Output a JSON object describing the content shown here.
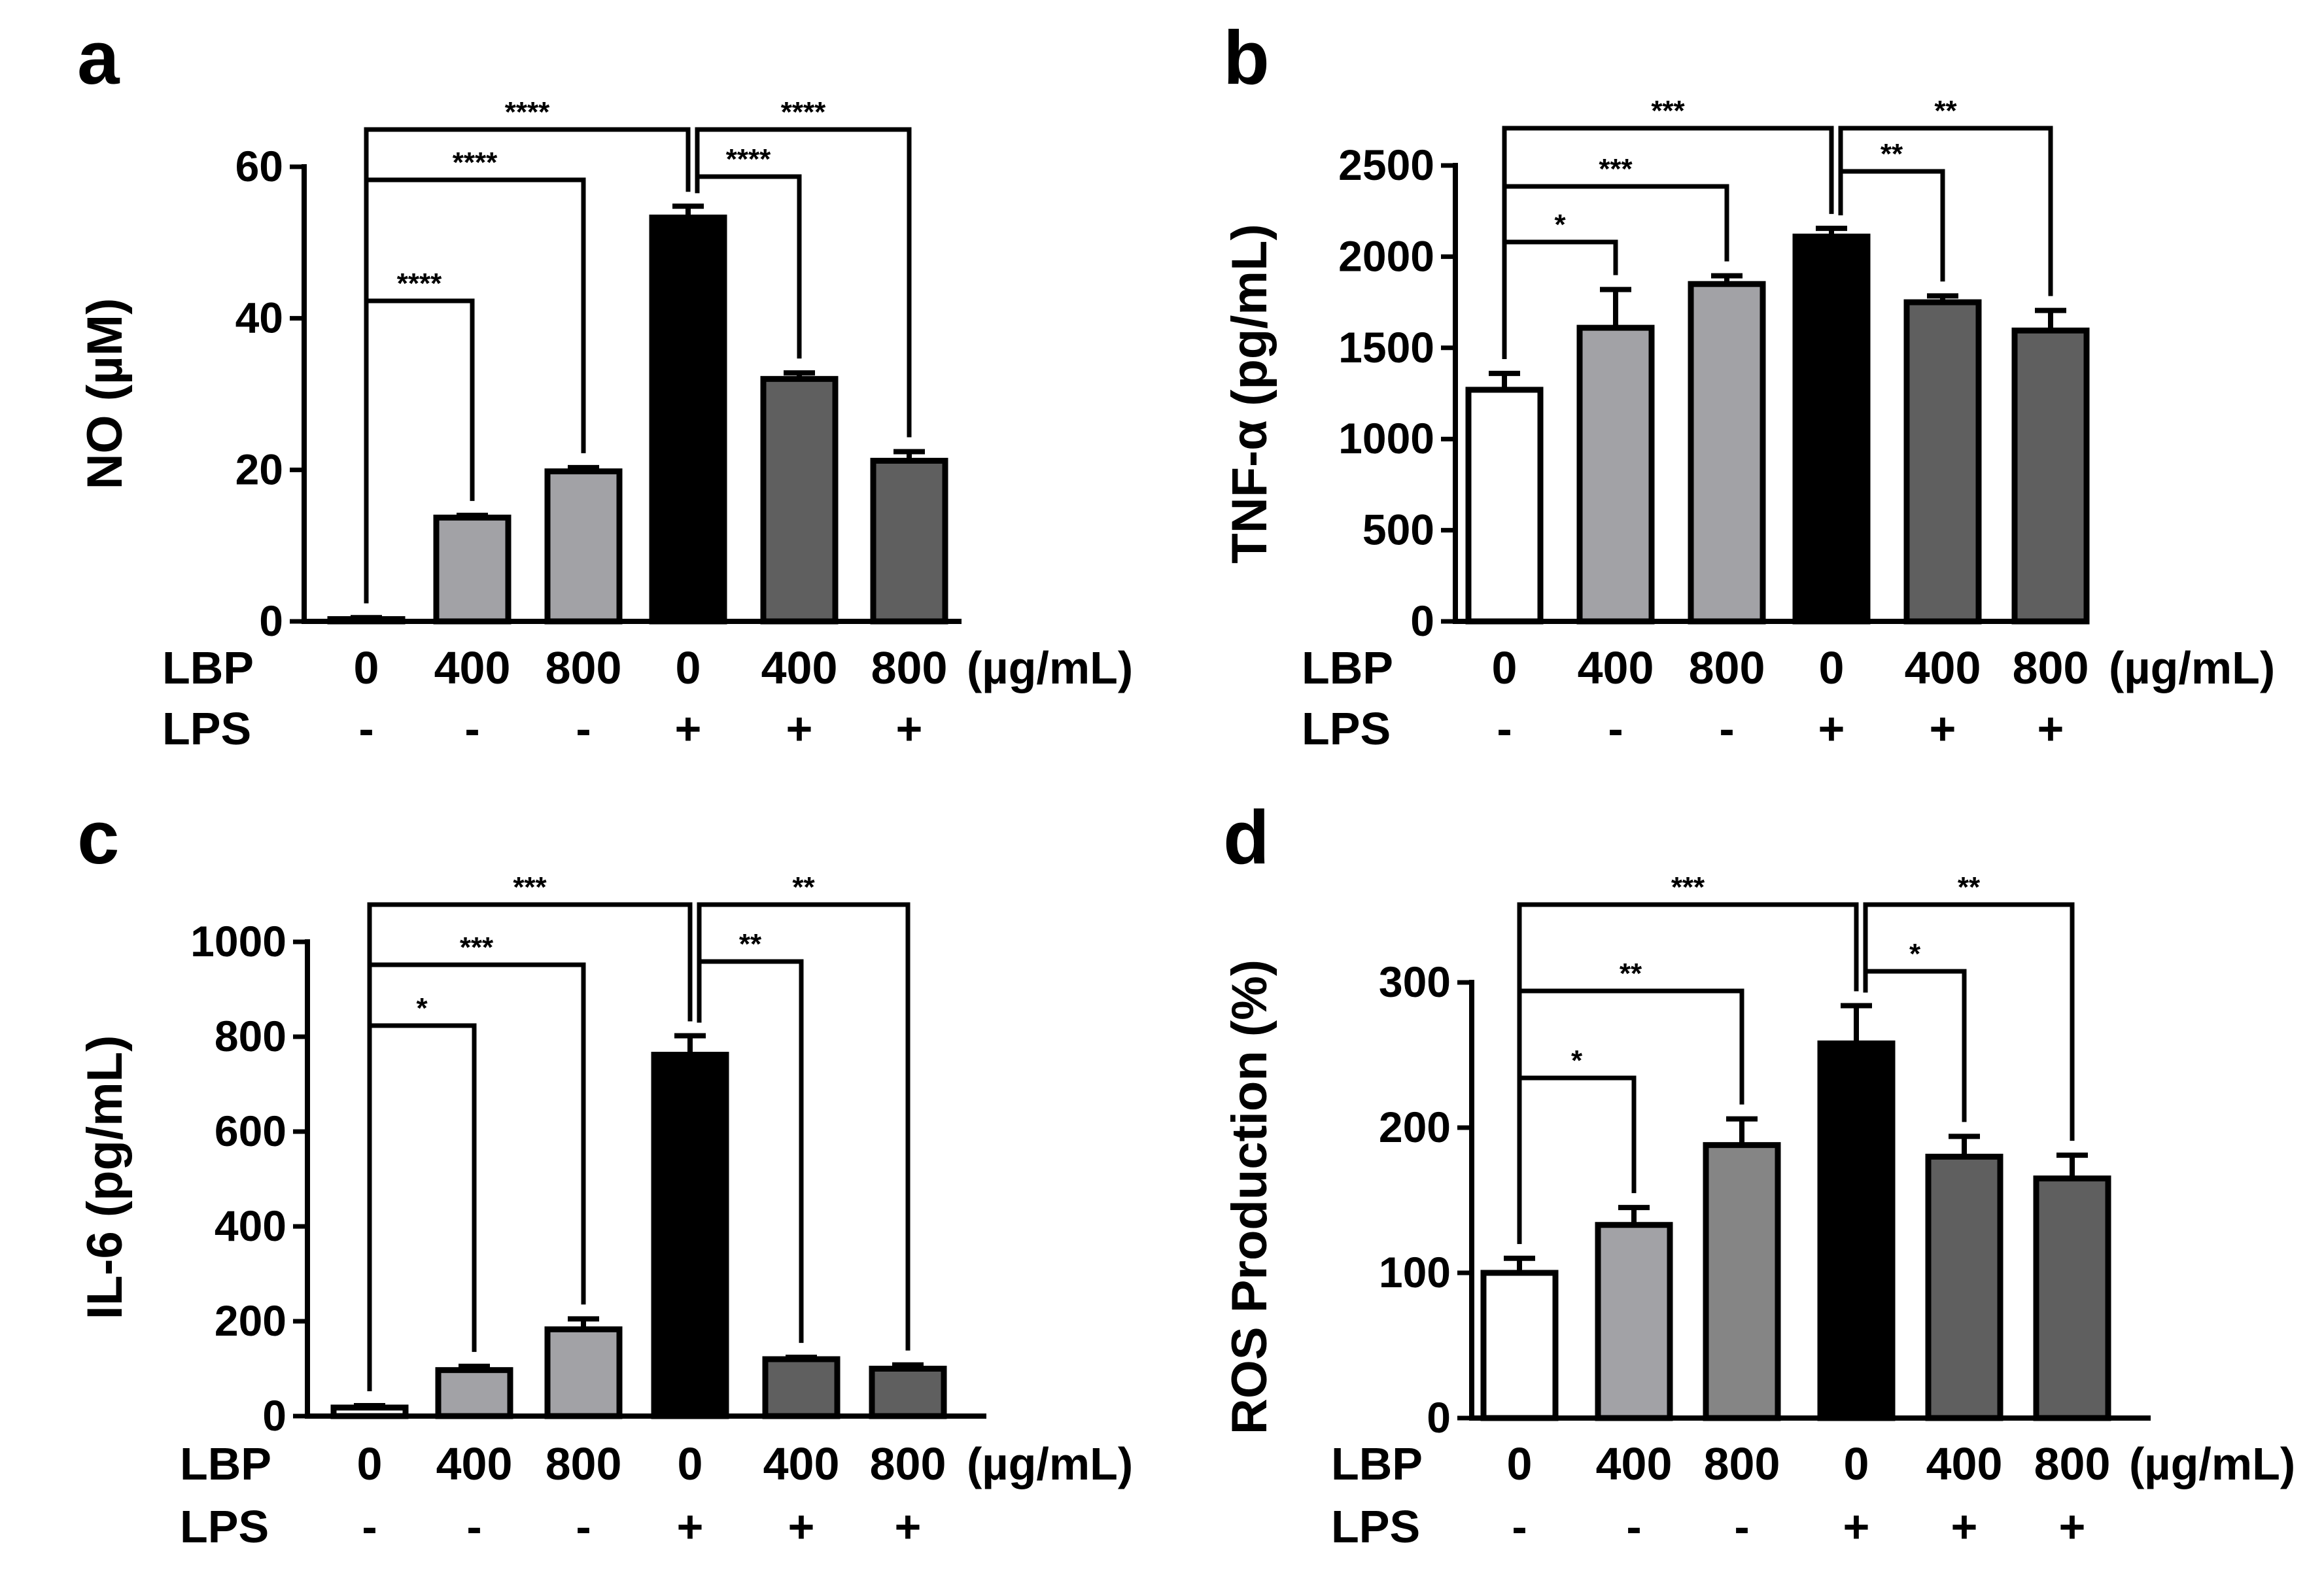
{
  "colors": {
    "none": "#ffffff",
    "lbp": "#a2a2a6",
    "lbp_800_d": "#858585",
    "lps": "#000000",
    "lps_lbp": "#5f5f5f",
    "axis": "#000000"
  },
  "conditions": {
    "lbp_label": "LBP",
    "lps_label": "LPS",
    "unit": "(µg/mL)",
    "lbp_values": [
      "0",
      "400",
      "800",
      "0",
      "400",
      "800"
    ],
    "lps_values": [
      "-",
      "-",
      "-",
      "+",
      "+",
      "+"
    ]
  },
  "chart_data": [
    {
      "type": "bar",
      "panel": "a",
      "ylabel": "NO (µM)",
      "ylim": [
        0,
        60
      ],
      "yticks": [
        0,
        20,
        40,
        60
      ],
      "categories": [
        "0 / -",
        "400 / -",
        "800 / -",
        "0 / +",
        "400 / +",
        "800 / +"
      ],
      "values": [
        0.3,
        13.7,
        19.8,
        53.3,
        32.0,
        21.2
      ],
      "errors": [
        0.2,
        0.3,
        0.5,
        1.5,
        0.8,
        1.2
      ],
      "fill_keys": [
        "none",
        "lbp",
        "lbp",
        "lps",
        "lps_lbp",
        "lps_lbp"
      ],
      "significance": [
        {
          "from": 0,
          "to": 3,
          "label": "****"
        },
        {
          "from": 0,
          "to": 2,
          "label": "****"
        },
        {
          "from": 0,
          "to": 1,
          "label": "****"
        },
        {
          "from": 3,
          "to": 5,
          "label": "****"
        },
        {
          "from": 3,
          "to": 4,
          "label": "****"
        }
      ]
    },
    {
      "type": "bar",
      "panel": "b",
      "ylabel": "TNF-α (pg/mL)",
      "ylim": [
        0,
        2500
      ],
      "yticks": [
        0,
        500,
        1000,
        1500,
        2000,
        2500
      ],
      "categories": [
        "0 / -",
        "400 / -",
        "800 / -",
        "0 / +",
        "400 / +",
        "800 / +"
      ],
      "values": [
        1270,
        1610,
        1850,
        2110,
        1750,
        1595
      ],
      "errors": [
        90,
        210,
        45,
        45,
        35,
        110
      ],
      "fill_keys": [
        "none",
        "lbp",
        "lbp",
        "lps",
        "lps_lbp",
        "lps_lbp"
      ],
      "significance": [
        {
          "from": 0,
          "to": 3,
          "label": "***"
        },
        {
          "from": 0,
          "to": 2,
          "label": "***"
        },
        {
          "from": 0,
          "to": 1,
          "label": "*"
        },
        {
          "from": 3,
          "to": 5,
          "label": "**"
        },
        {
          "from": 3,
          "to": 4,
          "label": "**"
        }
      ]
    },
    {
      "type": "bar",
      "panel": "c",
      "ylabel": "IL-6 (pg/mL)",
      "ylim": [
        0,
        1000
      ],
      "yticks": [
        0,
        200,
        400,
        600,
        800,
        1000
      ],
      "categories": [
        "0 / -",
        "400 / -",
        "800 / -",
        "0 / +",
        "400 / +",
        "800 / +"
      ],
      "values": [
        18,
        97,
        183,
        762,
        120,
        100
      ],
      "errors": [
        4,
        8,
        22,
        40,
        4,
        8
      ],
      "fill_keys": [
        "none",
        "lbp",
        "lbp",
        "lps",
        "lps_lbp",
        "lps_lbp"
      ],
      "significance": [
        {
          "from": 0,
          "to": 3,
          "label": "***"
        },
        {
          "from": 0,
          "to": 2,
          "label": "***"
        },
        {
          "from": 0,
          "to": 1,
          "label": "*"
        },
        {
          "from": 3,
          "to": 5,
          "label": "**"
        },
        {
          "from": 3,
          "to": 4,
          "label": "**"
        }
      ]
    },
    {
      "type": "bar",
      "panel": "d",
      "ylabel": "ROS Production (%)",
      "ylim": [
        0,
        300
      ],
      "yticks": [
        0,
        100,
        200,
        300
      ],
      "categories": [
        "0 / -",
        "400 / -",
        "800 / -",
        "0 / +",
        "400 / +",
        "800 / +"
      ],
      "values": [
        100,
        133,
        188,
        258,
        180,
        165
      ],
      "errors": [
        10,
        12,
        18,
        26,
        14,
        16
      ],
      "fill_keys": [
        "none",
        "lbp",
        "lbp_800_d",
        "lps",
        "lps_lbp",
        "lps_lbp"
      ],
      "significance": [
        {
          "from": 0,
          "to": 3,
          "label": "***"
        },
        {
          "from": 0,
          "to": 2,
          "label": "**"
        },
        {
          "from": 0,
          "to": 1,
          "label": "*"
        },
        {
          "from": 3,
          "to": 5,
          "label": "**"
        },
        {
          "from": 3,
          "to": 4,
          "label": "*"
        }
      ]
    }
  ]
}
